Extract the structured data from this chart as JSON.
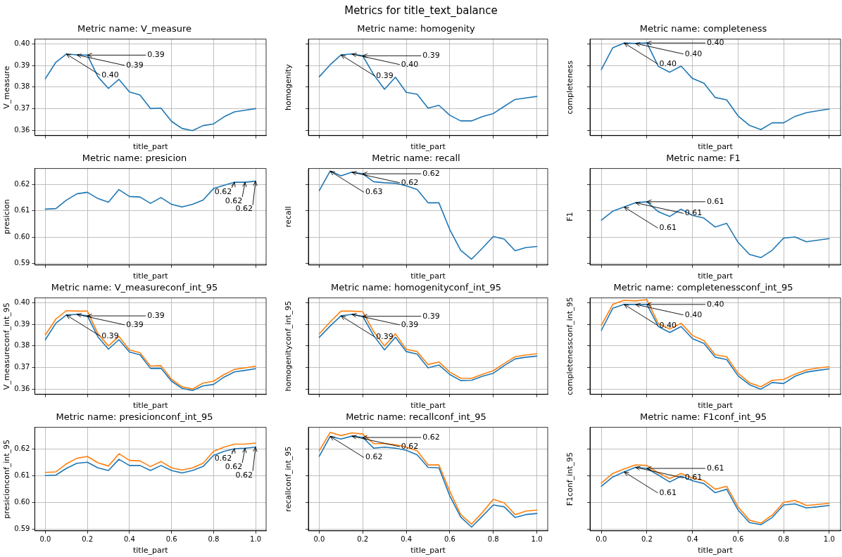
{
  "chart_data": [
    {
      "type": "other",
      "title": "Metrics for title_text_balance"
    },
    {
      "type": "line",
      "title": "Metric name: V_measure",
      "xlabel": "title_part",
      "ylabel": "V_measure",
      "grid": true,
      "tick_labels": "y",
      "x": [
        0,
        0.05,
        0.1,
        0.15,
        0.2,
        0.25,
        0.3,
        0.35,
        0.4,
        0.45,
        0.5,
        0.55,
        0.6,
        0.65,
        0.7,
        0.75,
        0.8,
        0.85,
        0.9,
        0.95,
        1.0
      ],
      "xlim": [
        -0.05,
        1.05
      ],
      "xticks": [
        {
          "value": 0,
          "label": null
        },
        {
          "value": 0.2,
          "label": null
        },
        {
          "value": 0.4,
          "label": null
        },
        {
          "value": 0.6,
          "label": null
        },
        {
          "value": 0.8,
          "label": null
        },
        {
          "value": 1,
          "label": null
        }
      ],
      "ylim": [
        0.3576,
        0.4022
      ],
      "yticks": [
        0.36,
        0.37,
        0.38,
        0.39,
        {
          "value": 0.4,
          "label": "0.40"
        }
      ],
      "series": [
        {
          "color": "#1f77b4",
          "values": [
            0.3839,
            0.3915,
            0.3953,
            0.3949,
            0.3948,
            0.3848,
            0.3794,
            0.3836,
            0.3778,
            0.3764,
            0.3701,
            0.3703,
            0.3642,
            0.3609,
            0.3599,
            0.3622,
            0.363,
            0.3663,
            0.3686,
            0.3693,
            0.3701
          ]
        }
      ],
      "annotations": [
        {
          "text": "0.40",
          "x": 0.1,
          "y": 0.3953
        },
        {
          "text": "0.39",
          "x": 0.15,
          "y": 0.3949
        },
        {
          "text": "0.39",
          "x": 0.2,
          "y": 0.3948
        }
      ]
    },
    {
      "type": "line",
      "title": "Metric name: homogenity",
      "xlabel": "title_part",
      "ylabel": "homogenity",
      "grid": true,
      "tick_labels": false,
      "x": [
        0,
        0.05,
        0.1,
        0.15,
        0.2,
        0.25,
        0.3,
        0.35,
        0.4,
        0.45,
        0.5,
        0.55,
        0.6,
        0.65,
        0.7,
        0.75,
        0.8,
        0.85,
        0.9,
        0.95,
        1.0
      ],
      "xlim": [
        -0.05,
        1.05
      ],
      "xticks": [
        {
          "value": 0,
          "label": null
        },
        {
          "value": 0.2,
          "label": null
        },
        {
          "value": 0.4,
          "label": null
        },
        {
          "value": 0.6,
          "label": null
        },
        {
          "value": 0.8,
          "label": null
        },
        {
          "value": 1,
          "label": null
        }
      ],
      "ylim": [
        0.3576,
        0.4022
      ],
      "yticks": [
        {
          "value": 0.36,
          "label": null
        },
        {
          "value": 0.37,
          "label": null
        },
        {
          "value": 0.38,
          "label": null
        },
        {
          "value": 0.39,
          "label": null
        },
        {
          "value": 0.4,
          "label": null
        }
      ],
      "series": [
        {
          "color": "#1f77b4",
          "values": [
            0.3848,
            0.3903,
            0.3949,
            0.3953,
            0.3945,
            0.3858,
            0.379,
            0.3846,
            0.3776,
            0.3767,
            0.3703,
            0.3716,
            0.367,
            0.3644,
            0.3644,
            0.3664,
            0.3678,
            0.3711,
            0.3743,
            0.375,
            0.3757
          ]
        }
      ],
      "annotations": [
        {
          "text": "0.39",
          "x": 0.1,
          "y": 0.3949
        },
        {
          "text": "0.40",
          "x": 0.15,
          "y": 0.3953
        },
        {
          "text": "0.39",
          "x": 0.2,
          "y": 0.3945
        }
      ]
    },
    {
      "type": "line",
      "title": "Metric name: completeness",
      "xlabel": "title_part",
      "ylabel": "completeness",
      "grid": true,
      "tick_labels": false,
      "x": [
        0,
        0.05,
        0.1,
        0.15,
        0.2,
        0.25,
        0.3,
        0.35,
        0.4,
        0.45,
        0.5,
        0.55,
        0.6,
        0.65,
        0.7,
        0.75,
        0.8,
        0.85,
        0.9,
        0.95,
        1.0
      ],
      "xlim": [
        -0.05,
        1.05
      ],
      "xticks": [
        {
          "value": 0,
          "label": null
        },
        {
          "value": 0.2,
          "label": null
        },
        {
          "value": 0.4,
          "label": null
        },
        {
          "value": 0.6,
          "label": null
        },
        {
          "value": 0.8,
          "label": null
        },
        {
          "value": 1,
          "label": null
        }
      ],
      "ylim": [
        0.3576,
        0.4022
      ],
      "yticks": [
        {
          "value": 0.36,
          "label": null
        },
        {
          "value": 0.37,
          "label": null
        },
        {
          "value": 0.38,
          "label": null
        },
        {
          "value": 0.39,
          "label": null
        },
        {
          "value": 0.4,
          "label": null
        }
      ],
      "series": [
        {
          "color": "#1f77b4",
          "values": [
            0.3881,
            0.3982,
            0.4004,
            0.4002,
            0.4004,
            0.3896,
            0.3869,
            0.3897,
            0.384,
            0.3818,
            0.3752,
            0.3741,
            0.3667,
            0.3623,
            0.3604,
            0.3635,
            0.3635,
            0.3665,
            0.3682,
            0.3691,
            0.3699
          ]
        }
      ],
      "annotations": [
        {
          "text": "0.40",
          "x": 0.1,
          "y": 0.4004
        },
        {
          "text": "0.40",
          "x": 0.15,
          "y": 0.4002
        },
        {
          "text": "0.40",
          "x": 0.2,
          "y": 0.4004
        }
      ]
    },
    {
      "type": "line",
      "title": "Metric name: presicion",
      "xlabel": "title_part",
      "ylabel": "presicion",
      "grid": true,
      "tick_labels": "y",
      "x": [
        0,
        0.05,
        0.1,
        0.15,
        0.2,
        0.25,
        0.3,
        0.35,
        0.4,
        0.45,
        0.5,
        0.55,
        0.6,
        0.65,
        0.7,
        0.75,
        0.8,
        0.85,
        0.9,
        0.95,
        1.0
      ],
      "xlim": [
        -0.05,
        1.05
      ],
      "xticks": [
        {
          "value": 0,
          "label": null
        },
        {
          "value": 0.2,
          "label": null
        },
        {
          "value": 0.4,
          "label": null
        },
        {
          "value": 0.6,
          "label": null
        },
        {
          "value": 0.8,
          "label": null
        },
        {
          "value": 1,
          "label": null
        }
      ],
      "ylim": [
        0.5894,
        0.626
      ],
      "yticks": [
        0.59,
        {
          "value": 0.6,
          "label": "0.60"
        },
        0.61,
        0.62
      ],
      "series": [
        {
          "color": "#1f77b4",
          "values": [
            0.6106,
            0.6108,
            0.614,
            0.6164,
            0.617,
            0.6146,
            0.6132,
            0.618,
            0.6154,
            0.6152,
            0.6128,
            0.615,
            0.6124,
            0.6114,
            0.6124,
            0.614,
            0.6184,
            0.6196,
            0.6208,
            0.6208,
            0.6212
          ]
        }
      ],
      "annotations": [
        {
          "text": "0.62",
          "x": 0.9,
          "y": 0.6208
        },
        {
          "text": "0.62",
          "x": 0.95,
          "y": 0.6208
        },
        {
          "text": "0.62",
          "x": 1.0,
          "y": 0.6212
        }
      ]
    },
    {
      "type": "line",
      "title": "Metric name: recall",
      "xlabel": "title_part",
      "ylabel": "recall",
      "grid": true,
      "tick_labels": false,
      "x": [
        0,
        0.05,
        0.1,
        0.15,
        0.2,
        0.25,
        0.3,
        0.35,
        0.4,
        0.45,
        0.5,
        0.55,
        0.6,
        0.65,
        0.7,
        0.75,
        0.8,
        0.85,
        0.9,
        0.95,
        1.0
      ],
      "xlim": [
        -0.05,
        1.05
      ],
      "xticks": [
        {
          "value": 0,
          "label": null
        },
        {
          "value": 0.2,
          "label": null
        },
        {
          "value": 0.4,
          "label": null
        },
        {
          "value": 0.6,
          "label": null
        },
        {
          "value": 0.8,
          "label": null
        },
        {
          "value": 1,
          "label": null
        }
      ],
      "ylim": [
        0.5894,
        0.626
      ],
      "yticks": [
        {
          "value": 0.59,
          "label": null
        },
        {
          "value": 0.6,
          "label": null
        },
        {
          "value": 0.61,
          "label": null
        },
        {
          "value": 0.62,
          "label": null
        }
      ],
      "series": [
        {
          "color": "#1f77b4",
          "values": [
            0.6176,
            0.625,
            0.6232,
            0.6246,
            0.624,
            0.621,
            0.6206,
            0.6204,
            0.6194,
            0.618,
            0.613,
            0.613,
            0.6028,
            0.595,
            0.5916,
            0.5958,
            0.6002,
            0.5992,
            0.5948,
            0.596,
            0.5964
          ]
        }
      ],
      "annotations": [
        {
          "text": "0.63",
          "x": 0.05,
          "y": 0.625
        },
        {
          "text": "0.62",
          "x": 0.15,
          "y": 0.6246
        },
        {
          "text": "0.62",
          "x": 0.2,
          "y": 0.624
        }
      ]
    },
    {
      "type": "line",
      "title": "Metric name: F1",
      "xlabel": "title_part",
      "ylabel": "F1",
      "grid": true,
      "tick_labels": false,
      "x": [
        0,
        0.05,
        0.1,
        0.15,
        0.2,
        0.25,
        0.3,
        0.35,
        0.4,
        0.45,
        0.5,
        0.55,
        0.6,
        0.65,
        0.7,
        0.75,
        0.8,
        0.85,
        0.9,
        0.95,
        1.0
      ],
      "xlim": [
        -0.05,
        1.05
      ],
      "xticks": [
        {
          "value": 0,
          "label": null
        },
        {
          "value": 0.2,
          "label": null
        },
        {
          "value": 0.4,
          "label": null
        },
        {
          "value": 0.6,
          "label": null
        },
        {
          "value": 0.8,
          "label": null
        },
        {
          "value": 1,
          "label": null
        }
      ],
      "ylim": [
        0.5894,
        0.626
      ],
      "yticks": [
        {
          "value": 0.59,
          "label": null
        },
        {
          "value": 0.6,
          "label": null
        },
        {
          "value": 0.61,
          "label": null
        },
        {
          "value": 0.62,
          "label": null
        }
      ],
      "series": [
        {
          "color": "#1f77b4",
          "values": [
            0.6064,
            0.6098,
            0.6114,
            0.613,
            0.6134,
            0.6096,
            0.6078,
            0.6106,
            0.6082,
            0.6072,
            0.6038,
            0.6052,
            0.598,
            0.5934,
            0.5922,
            0.595,
            0.5996,
            0.6,
            0.5982,
            0.5988,
            0.5994
          ]
        }
      ],
      "annotations": [
        {
          "text": "0.61",
          "x": 0.1,
          "y": 0.6114
        },
        {
          "text": "0.61",
          "x": 0.15,
          "y": 0.613
        },
        {
          "text": "0.61",
          "x": 0.2,
          "y": 0.6134
        }
      ]
    },
    {
      "type": "line",
      "title": "Metric name: V_measureconf_int_95",
      "xlabel": "title_part",
      "ylabel": "V_measureconf_int_95",
      "grid": true,
      "tick_labels": "y",
      "x": [
        0,
        0.05,
        0.1,
        0.15,
        0.2,
        0.25,
        0.3,
        0.35,
        0.4,
        0.45,
        0.5,
        0.55,
        0.6,
        0.65,
        0.7,
        0.75,
        0.8,
        0.85,
        0.9,
        0.95,
        1.0
      ],
      "xlim": [
        -0.05,
        1.05
      ],
      "xticks": [
        {
          "value": 0,
          "label": null
        },
        {
          "value": 0.2,
          "label": null
        },
        {
          "value": 0.4,
          "label": null
        },
        {
          "value": 0.6,
          "label": null
        },
        {
          "value": 0.8,
          "label": null
        },
        {
          "value": 1,
          "label": null
        }
      ],
      "ylim": [
        0.3576,
        0.4022
      ],
      "yticks": [
        0.36,
        0.37,
        0.38,
        0.39,
        {
          "value": 0.4,
          "label": "0.40"
        }
      ],
      "series": [
        {
          "color": "#1f77b4",
          "values": [
            0.3829,
            0.3905,
            0.3943,
            0.3946,
            0.3939,
            0.3842,
            0.3785,
            0.3829,
            0.3772,
            0.3759,
            0.3696,
            0.3697,
            0.3637,
            0.3604,
            0.3594,
            0.3615,
            0.3622,
            0.3656,
            0.368,
            0.3687,
            0.3695
          ]
        },
        {
          "color": "#ff7f0e",
          "values": [
            0.3851,
            0.3924,
            0.3963,
            0.3961,
            0.3961,
            0.3857,
            0.38,
            0.3844,
            0.3782,
            0.3769,
            0.3707,
            0.3709,
            0.3646,
            0.3611,
            0.3601,
            0.3628,
            0.3637,
            0.3668,
            0.3692,
            0.3699,
            0.3706
          ]
        }
      ],
      "annotations": [
        {
          "text": "0.39",
          "x": 0.1,
          "y": 0.3943
        },
        {
          "text": "0.39",
          "x": 0.15,
          "y": 0.3946
        },
        {
          "text": "0.39",
          "x": 0.2,
          "y": 0.3939
        }
      ]
    },
    {
      "type": "line",
      "title": "Metric name: homogenityconf_int_95",
      "xlabel": "title_part",
      "ylabel": "homogenityconf_int_95",
      "grid": true,
      "tick_labels": false,
      "x": [
        0,
        0.05,
        0.1,
        0.15,
        0.2,
        0.25,
        0.3,
        0.35,
        0.4,
        0.45,
        0.5,
        0.55,
        0.6,
        0.65,
        0.7,
        0.75,
        0.8,
        0.85,
        0.9,
        0.95,
        1.0
      ],
      "xlim": [
        -0.05,
        1.05
      ],
      "xticks": [
        {
          "value": 0,
          "label": null
        },
        {
          "value": 0.2,
          "label": null
        },
        {
          "value": 0.4,
          "label": null
        },
        {
          "value": 0.6,
          "label": null
        },
        {
          "value": 0.8,
          "label": null
        },
        {
          "value": 1,
          "label": null
        }
      ],
      "ylim": [
        0.3576,
        0.4022
      ],
      "yticks": [
        {
          "value": 0.36,
          "label": null
        },
        {
          "value": 0.37,
          "label": null
        },
        {
          "value": 0.38,
          "label": null
        },
        {
          "value": 0.39,
          "label": null
        },
        {
          "value": 0.4,
          "label": null
        }
      ],
      "series": [
        {
          "color": "#1f77b4",
          "values": [
            0.384,
            0.3892,
            0.3939,
            0.3946,
            0.3937,
            0.3848,
            0.3782,
            0.384,
            0.3774,
            0.3762,
            0.3699,
            0.3712,
            0.3668,
            0.364,
            0.3641,
            0.366,
            0.3674,
            0.3709,
            0.374,
            0.3748,
            0.3753
          ]
        },
        {
          "color": "#ff7f0e",
          "values": [
            0.3856,
            0.3911,
            0.3961,
            0.3961,
            0.3958,
            0.3867,
            0.38,
            0.3856,
            0.3784,
            0.3774,
            0.3714,
            0.3726,
            0.3679,
            0.3651,
            0.365,
            0.3669,
            0.3686,
            0.3719,
            0.375,
            0.3758,
            0.3764
          ]
        }
      ],
      "annotations": [
        {
          "text": "0.39",
          "x": 0.1,
          "y": 0.3939
        },
        {
          "text": "0.39",
          "x": 0.15,
          "y": 0.3946
        },
        {
          "text": "0.39",
          "x": 0.2,
          "y": 0.3937
        }
      ]
    },
    {
      "type": "line",
      "title": "Metric name: completenessconf_int_95",
      "xlabel": "title_part",
      "ylabel": "completenessconf_int_95",
      "grid": true,
      "tick_labels": false,
      "x": [
        0,
        0.05,
        0.1,
        0.15,
        0.2,
        0.25,
        0.3,
        0.35,
        0.4,
        0.45,
        0.5,
        0.55,
        0.6,
        0.65,
        0.7,
        0.75,
        0.8,
        0.85,
        0.9,
        0.95,
        1.0
      ],
      "xlim": [
        -0.05,
        1.05
      ],
      "xticks": [
        {
          "value": 0,
          "label": null
        },
        {
          "value": 0.2,
          "label": null
        },
        {
          "value": 0.4,
          "label": null
        },
        {
          "value": 0.6,
          "label": null
        },
        {
          "value": 0.8,
          "label": null
        },
        {
          "value": 1,
          "label": null
        }
      ],
      "ylim": [
        0.3576,
        0.4022
      ],
      "yticks": [
        {
          "value": 0.36,
          "label": null
        },
        {
          "value": 0.37,
          "label": null
        },
        {
          "value": 0.38,
          "label": null
        },
        {
          "value": 0.39,
          "label": null
        },
        {
          "value": 0.4,
          "label": null
        }
      ],
      "series": [
        {
          "color": "#1f77b4",
          "values": [
            0.3872,
            0.3974,
            0.3992,
            0.3992,
            0.3992,
            0.389,
            0.3862,
            0.389,
            0.3834,
            0.3812,
            0.3748,
            0.3737,
            0.3662,
            0.3621,
            0.36,
            0.3631,
            0.3626,
            0.366,
            0.3679,
            0.3687,
            0.3694
          ]
        },
        {
          "color": "#ff7f0e",
          "values": [
            0.3895,
            0.3992,
            0.4011,
            0.4008,
            0.4014,
            0.3903,
            0.3878,
            0.3905,
            0.3848,
            0.3825,
            0.3759,
            0.375,
            0.3674,
            0.363,
            0.3611,
            0.3641,
            0.3645,
            0.367,
            0.3689,
            0.3698,
            0.3704
          ]
        }
      ],
      "annotations": [
        {
          "text": "0.40",
          "x": 0.1,
          "y": 0.3992
        },
        {
          "text": "0.40",
          "x": 0.15,
          "y": 0.3992
        },
        {
          "text": "0.40",
          "x": 0.2,
          "y": 0.3992
        }
      ]
    },
    {
      "type": "line",
      "title": "Metric name: presicionconf_int_95",
      "xlabel": "title_part",
      "ylabel": "presicionconf_int_95",
      "grid": true,
      "x": [
        0,
        0.05,
        0.1,
        0.15,
        0.2,
        0.25,
        0.3,
        0.35,
        0.4,
        0.45,
        0.5,
        0.55,
        0.6,
        0.65,
        0.7,
        0.75,
        0.8,
        0.85,
        0.9,
        0.95,
        1.0
      ],
      "xlim": [
        -0.05,
        1.05
      ],
      "xticks": [
        {
          "value": 0,
          "label": "0.0"
        },
        0.2,
        0.4,
        0.6,
        0.8,
        {
          "value": 1,
          "label": "1.0"
        }
      ],
      "ylim": [
        0.5894,
        0.6282
      ],
      "yticks": [
        0.59,
        {
          "value": 0.6,
          "label": "0.60"
        },
        0.61,
        0.62
      ],
      "series": [
        {
          "color": "#1f77b4",
          "values": [
            0.6101,
            0.6103,
            0.6128,
            0.6147,
            0.6151,
            0.613,
            0.612,
            0.6162,
            0.6139,
            0.6139,
            0.612,
            0.6139,
            0.612,
            0.6111,
            0.612,
            0.6135,
            0.6177,
            0.6192,
            0.6202,
            0.6204,
            0.6208
          ]
        },
        {
          "color": "#ff7f0e",
          "values": [
            0.6113,
            0.6115,
            0.6145,
            0.6166,
            0.6173,
            0.6149,
            0.6137,
            0.6183,
            0.6158,
            0.6156,
            0.6135,
            0.6154,
            0.613,
            0.6122,
            0.613,
            0.6147,
            0.6192,
            0.6208,
            0.6219,
            0.6219,
            0.6223
          ]
        }
      ],
      "annotations": [
        {
          "text": "0.62",
          "x": 0.9,
          "y": 0.6202
        },
        {
          "text": "0.62",
          "x": 0.95,
          "y": 0.6204
        },
        {
          "text": "0.62",
          "x": 1.0,
          "y": 0.6208
        }
      ]
    },
    {
      "type": "line",
      "title": "Metric name: recallconf_int_95",
      "xlabel": "title_part",
      "ylabel": "recallconf_int_95",
      "grid": true,
      "tick_labels": "x",
      "x": [
        0,
        0.05,
        0.1,
        0.15,
        0.2,
        0.25,
        0.3,
        0.35,
        0.4,
        0.45,
        0.5,
        0.55,
        0.6,
        0.65,
        0.7,
        0.75,
        0.8,
        0.85,
        0.9,
        0.95,
        1.0
      ],
      "xlim": [
        -0.05,
        1.05
      ],
      "xticks": [
        {
          "value": 0,
          "label": "0.0"
        },
        0.2,
        0.4,
        0.6,
        0.8,
        {
          "value": 1,
          "label": "1.0"
        }
      ],
      "ylim": [
        0.5894,
        0.6282
      ],
      "yticks": [
        {
          "value": 0.59,
          "label": null
        },
        {
          "value": 0.6,
          "label": null
        },
        {
          "value": 0.61,
          "label": null
        },
        {
          "value": 0.62,
          "label": null
        }
      ],
      "series": [
        {
          "color": "#1f77b4",
          "values": [
            0.6173,
            0.6248,
            0.6238,
            0.6249,
            0.6244,
            0.6204,
            0.6208,
            0.6204,
            0.6196,
            0.6179,
            0.6132,
            0.613,
            0.6025,
            0.5946,
            0.5908,
            0.5949,
            0.5991,
            0.5984,
            0.5944,
            0.5955,
            0.5959
          ]
        },
        {
          "color": "#ff7f0e",
          "values": [
            0.6194,
            0.6263,
            0.6251,
            0.6261,
            0.6257,
            0.6221,
            0.6221,
            0.6217,
            0.6208,
            0.6194,
            0.6141,
            0.6141,
            0.6042,
            0.5955,
            0.5919,
            0.5963,
            0.6012,
            0.5999,
            0.5955,
            0.5968,
            0.5972
          ]
        }
      ],
      "annotations": [
        {
          "text": "0.62",
          "x": 0.05,
          "y": 0.6248
        },
        {
          "text": "0.62",
          "x": 0.15,
          "y": 0.6249
        },
        {
          "text": "0.62",
          "x": 0.2,
          "y": 0.6244
        }
      ]
    },
    {
      "type": "line",
      "title": "Metric name: F1conf_int_95",
      "xlabel": "title_part",
      "ylabel": "F1conf_int_95",
      "grid": true,
      "tick_labels": "x",
      "x": [
        0,
        0.05,
        0.1,
        0.15,
        0.2,
        0.25,
        0.3,
        0.35,
        0.4,
        0.45,
        0.5,
        0.55,
        0.6,
        0.65,
        0.7,
        0.75,
        0.8,
        0.85,
        0.9,
        0.95,
        1.0
      ],
      "xlim": [
        -0.05,
        1.05
      ],
      "xticks": [
        {
          "value": 0,
          "label": "0.0"
        },
        0.2,
        0.4,
        0.6,
        0.8,
        {
          "value": 1,
          "label": "1.0"
        }
      ],
      "ylim": [
        0.5894,
        0.6282
      ],
      "yticks": [
        {
          "value": 0.59,
          "label": null
        },
        {
          "value": 0.6,
          "label": null
        },
        {
          "value": 0.61,
          "label": null
        },
        {
          "value": 0.62,
          "label": null
        }
      ],
      "series": [
        {
          "color": "#1f77b4",
          "values": [
            0.6061,
            0.6096,
            0.6115,
            0.6132,
            0.6128,
            0.6103,
            0.6077,
            0.6099,
            0.6082,
            0.6071,
            0.6037,
            0.605,
            0.5972,
            0.5925,
            0.5917,
            0.5944,
            0.5991,
            0.5995,
            0.598,
            0.5984,
            0.5989
          ]
        },
        {
          "color": "#ff7f0e",
          "values": [
            0.6073,
            0.6109,
            0.6126,
            0.6141,
            0.6139,
            0.6111,
            0.609,
            0.6109,
            0.6092,
            0.6082,
            0.605,
            0.6061,
            0.5984,
            0.5934,
            0.5923,
            0.5953,
            0.6001,
            0.6008,
            0.5989,
            0.5993,
            0.5997
          ]
        }
      ],
      "annotations": [
        {
          "text": "0.61",
          "x": 0.1,
          "y": 0.6115
        },
        {
          "text": "0.61",
          "x": 0.15,
          "y": 0.6132
        },
        {
          "text": "0.61",
          "x": 0.2,
          "y": 0.6128
        }
      ]
    }
  ]
}
